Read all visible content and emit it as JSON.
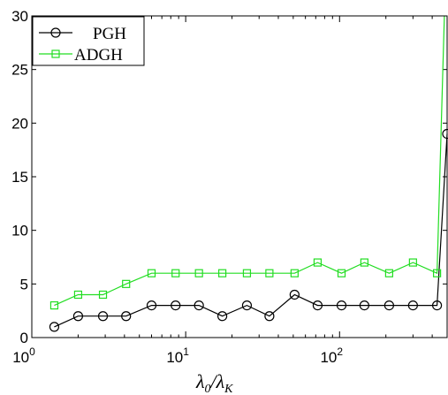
{
  "chart_data": {
    "type": "line",
    "title": "",
    "xlabel_main": "λ",
    "xlabel_sub0": "0",
    "xlabel_slash": "/λ",
    "xlabel_subK": "K",
    "xscale": "log",
    "xlim": [
      1,
      500
    ],
    "ylim": [
      0,
      30
    ],
    "grid": false,
    "legend_position": "top-left",
    "x_ticks": [
      {
        "base": "10",
        "exp": "0",
        "value": 1
      },
      {
        "base": "10",
        "exp": "1",
        "value": 10
      },
      {
        "base": "10",
        "exp": "2",
        "value": 100
      }
    ],
    "y_ticks": [
      "0",
      "5",
      "10",
      "15",
      "20",
      "25",
      "30"
    ],
    "x": [
      1.4,
      2.0,
      2.9,
      4.1,
      6.0,
      8.6,
      12.2,
      17.3,
      25,
      35,
      51,
      72,
      103,
      145,
      210,
      300,
      430
    ],
    "series": [
      {
        "name": "PGH",
        "color": "#000000",
        "marker": "circle",
        "values": [
          1,
          2,
          2,
          2,
          3,
          3,
          3,
          2,
          3,
          2,
          4,
          3,
          3,
          3,
          3,
          3,
          3
        ],
        "end_x": 500,
        "end_y": 19
      },
      {
        "name": "ADGH",
        "color": "#22dd22",
        "marker": "square",
        "values": [
          3,
          4,
          4,
          5,
          6,
          6,
          6,
          6,
          6,
          6,
          6,
          7,
          6,
          7,
          6,
          7,
          6
        ],
        "end_x": 480,
        "end_y": 30
      }
    ]
  }
}
